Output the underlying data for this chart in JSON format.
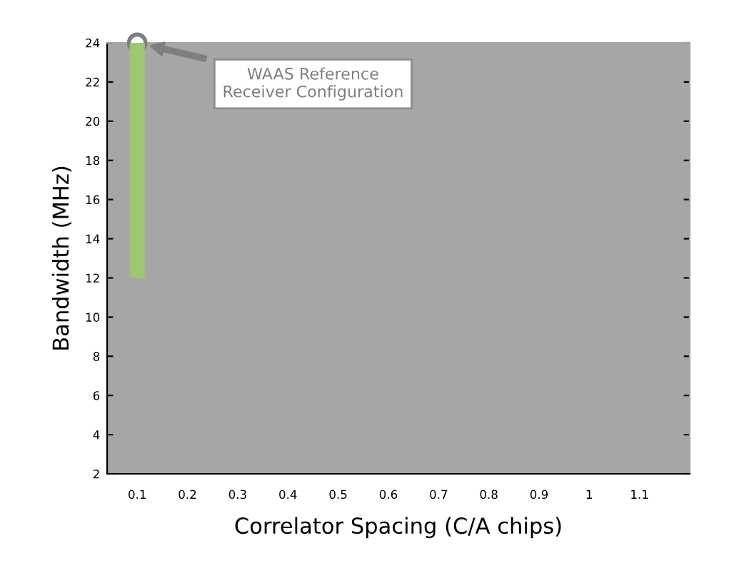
{
  "chart_data": {
    "type": "bar",
    "xlabel": "Correlator Spacing (C/A chips)",
    "ylabel": "Bandwidth (MHz)",
    "series": [
      {
        "x": [
          0.1
        ],
        "base": [
          12
        ],
        "values": [
          12
        ],
        "color": "#9dc770"
      },
      {
        "type": "scatter",
        "x": [
          0.1
        ],
        "values": [
          24
        ],
        "color": "#ffffff",
        "marker": "circle"
      }
    ],
    "annotations": [
      "WAAS Reference\nReceiver Configuration"
    ],
    "xlim": [
      0.04,
      1.2
    ],
    "ylim": [
      2,
      24
    ],
    "xticks": [
      0.1,
      0.2,
      0.3,
      0.4,
      0.5,
      0.6,
      0.7,
      0.8,
      0.9,
      1,
      1.1
    ],
    "yticks": [
      2,
      4,
      6,
      8,
      10,
      12,
      14,
      16,
      18,
      20,
      22,
      24
    ],
    "grid": false,
    "legend": false
  }
}
